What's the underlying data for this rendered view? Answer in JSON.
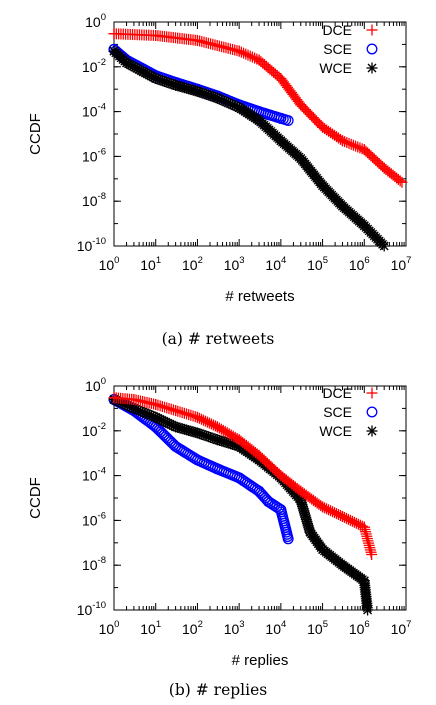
{
  "chart_data": [
    {
      "type": "scatter",
      "xscale": "log",
      "yscale": "log",
      "xlim": [
        1,
        10000000
      ],
      "ylim": [
        1e-10,
        1
      ],
      "x_ticks": [
        {
          "base": "10",
          "exp": "0"
        },
        {
          "base": "10",
          "exp": "1"
        },
        {
          "base": "10",
          "exp": "2"
        },
        {
          "base": "10",
          "exp": "3"
        },
        {
          "base": "10",
          "exp": "4"
        },
        {
          "base": "10",
          "exp": "5"
        },
        {
          "base": "10",
          "exp": "6"
        },
        {
          "base": "10",
          "exp": "7"
        }
      ],
      "y_ticks": [
        {
          "base": "10",
          "exp": "0"
        },
        {
          "base": "10",
          "exp": "-2"
        },
        {
          "base": "10",
          "exp": "-4"
        },
        {
          "base": "10",
          "exp": "-6"
        },
        {
          "base": "10",
          "exp": "-8"
        },
        {
          "base": "10",
          "exp": "-10"
        }
      ],
      "xlabel": "# retweets",
      "ylabel": "CCDF",
      "caption": "(a)  # retweets",
      "legend_position": "top-right",
      "series": [
        {
          "name": "DCE",
          "marker": "plus",
          "color": "#ff0000",
          "x": [
            1,
            10,
            100,
            1000,
            3000,
            10000,
            30000,
            100000,
            300000,
            1000000,
            3000000,
            8000000
          ],
          "y": [
            0.3,
            0.25,
            0.15,
            0.05,
            0.02,
            0.003,
            0.0002,
            2e-05,
            5e-06,
            2e-06,
            3e-07,
            7e-08
          ]
        },
        {
          "name": "SCE",
          "marker": "circle",
          "color": "#0000ff",
          "x": [
            1,
            2,
            5,
            10,
            30,
            100,
            300,
            1000,
            3000,
            10000,
            15000
          ],
          "y": [
            0.06,
            0.02,
            0.008,
            0.004,
            0.002,
            0.001,
            0.0005,
            0.0002,
            0.0001,
            5e-05,
            4e-05
          ]
        },
        {
          "name": "WCE",
          "marker": "star",
          "color": "#000000",
          "x": [
            1,
            2,
            5,
            10,
            30,
            100,
            300,
            1000,
            3000,
            10000,
            30000,
            100000,
            300000,
            1000000,
            3000000
          ],
          "y": [
            0.05,
            0.015,
            0.006,
            0.003,
            0.0015,
            0.0008,
            0.0004,
            0.00015,
            4e-05,
            5e-06,
            8e-07,
            5e-08,
            6e-09,
            8e-10,
            1e-10
          ]
        }
      ]
    },
    {
      "type": "scatter",
      "xscale": "log",
      "yscale": "log",
      "xlim": [
        1,
        10000000
      ],
      "ylim": [
        1e-10,
        1
      ],
      "x_ticks": [
        {
          "base": "10",
          "exp": "0"
        },
        {
          "base": "10",
          "exp": "1"
        },
        {
          "base": "10",
          "exp": "2"
        },
        {
          "base": "10",
          "exp": "3"
        },
        {
          "base": "10",
          "exp": "4"
        },
        {
          "base": "10",
          "exp": "5"
        },
        {
          "base": "10",
          "exp": "6"
        },
        {
          "base": "10",
          "exp": "7"
        }
      ],
      "y_ticks": [
        {
          "base": "10",
          "exp": "0"
        },
        {
          "base": "10",
          "exp": "-2"
        },
        {
          "base": "10",
          "exp": "-4"
        },
        {
          "base": "10",
          "exp": "-6"
        },
        {
          "base": "10",
          "exp": "-8"
        },
        {
          "base": "10",
          "exp": "-10"
        }
      ],
      "xlabel": "# replies",
      "ylabel": "CCDF",
      "caption": "(b)  # replies",
      "legend_position": "top-right",
      "series": [
        {
          "name": "DCE",
          "marker": "plus",
          "color": "#ff0000",
          "x": [
            1,
            3,
            10,
            30,
            100,
            300,
            1000,
            3000,
            10000,
            30000,
            100000,
            300000,
            1000000,
            1500000
          ],
          "y": [
            0.3,
            0.25,
            0.15,
            0.08,
            0.04,
            0.015,
            0.004,
            0.0008,
            0.0001,
            2e-05,
            4e-06,
            1.5e-06,
            5e-07,
            3e-08
          ]
        },
        {
          "name": "SCE",
          "marker": "circle",
          "color": "#0000ff",
          "x": [
            1,
            3,
            10,
            30,
            100,
            300,
            1000,
            3000,
            5000,
            10000,
            15000
          ],
          "y": [
            0.25,
            0.08,
            0.015,
            0.002,
            0.0005,
            0.0002,
            8e-05,
            2e-05,
            7e-06,
            3e-06,
            1.5e-07
          ]
        },
        {
          "name": "WCE",
          "marker": "star",
          "color": "#000000",
          "x": [
            1,
            3,
            10,
            30,
            100,
            300,
            1000,
            3000,
            10000,
            30000,
            50000,
            100000,
            300000,
            1000000,
            1200000
          ],
          "y": [
            0.25,
            0.1,
            0.04,
            0.015,
            0.008,
            0.004,
            0.002,
            0.0005,
            8e-05,
            8e-06,
            3e-07,
            5e-08,
            1e-08,
            2e-09,
            1e-10
          ]
        }
      ]
    }
  ]
}
